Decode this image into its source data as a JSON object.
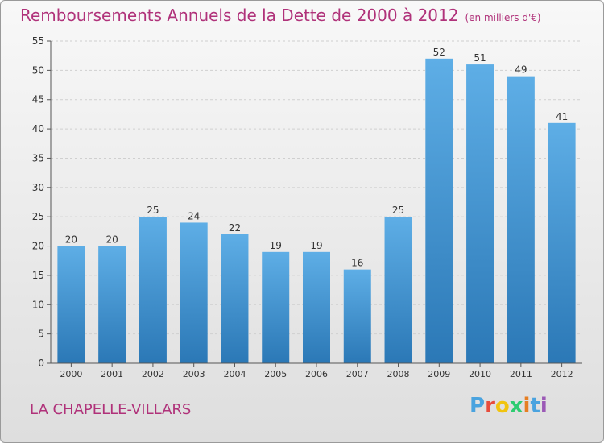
{
  "header": {
    "title": "Remboursements Annuels de la Dette de 2000 à 2012",
    "unit": "(en milliers d'€)"
  },
  "footer": {
    "commune": "LA CHAPELLE-VILLARS",
    "logo_letters": [
      "P",
      "r",
      "o",
      "x",
      "i",
      "t",
      "i"
    ],
    "logo_colors": [
      "#4aa3df",
      "#e74c3c",
      "#f1c40f",
      "#2ecc71",
      "#e67e22",
      "#4aa3df",
      "#9b59b6"
    ]
  },
  "colors": {
    "title": "#b0327a",
    "bar_top": "#5eaee6",
    "bar_bottom": "#2b78b6",
    "axis": "#555555",
    "grid": "#cfcfcf"
  },
  "chart_data": {
    "type": "bar",
    "title": "Remboursements Annuels de la Dette de 2000 à 2012",
    "unit": "(en milliers d'€)",
    "categories": [
      "2000",
      "2001",
      "2002",
      "2003",
      "2004",
      "2005",
      "2006",
      "2007",
      "2008",
      "2009",
      "2010",
      "2011",
      "2012"
    ],
    "values": [
      20,
      20,
      25,
      24,
      22,
      19,
      19,
      16,
      25,
      52,
      51,
      49,
      41
    ],
    "ylim": [
      0,
      55
    ],
    "yticks": [
      0,
      5,
      10,
      15,
      20,
      25,
      30,
      35,
      40,
      45,
      50,
      55
    ],
    "xlabel": "",
    "ylabel": "",
    "grid": true
  }
}
